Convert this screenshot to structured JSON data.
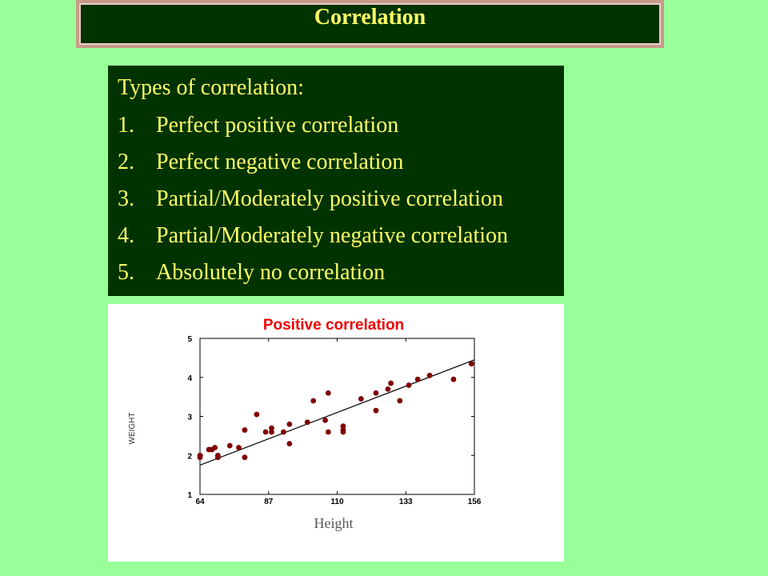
{
  "header": {
    "title": "Correlation"
  },
  "types": {
    "heading": "Types of correlation:",
    "items": [
      {
        "num": "1.",
        "label": "Perfect positive correlation"
      },
      {
        "num": "2.",
        "label": "Perfect negative correlation"
      },
      {
        "num": "3.",
        "label": "Partial/Moderately positive correlation"
      },
      {
        "num": "4.",
        "label": "Partial/Moderately negative correlation"
      },
      {
        "num": "5.",
        "label": "Absolutely no correlation"
      }
    ]
  },
  "chart_data": {
    "type": "scatter",
    "title": "Positive correlation",
    "xlabel": "Height",
    "ylabel": "WEIGHT",
    "xlim": [
      64,
      156
    ],
    "ylim": [
      1,
      5
    ],
    "x_ticks": [
      "64",
      "87",
      "110",
      "133",
      "156"
    ],
    "y_ticks": [
      "1",
      "2",
      "3",
      "4",
      "5"
    ],
    "grid": false,
    "colors": {
      "points": "#800000",
      "title": "#ee0000",
      "line": "#000000"
    },
    "trend_line": {
      "x": [
        64,
        156
      ],
      "y": [
        1.75,
        4.45
      ]
    },
    "points": [
      {
        "x": 64,
        "y": 1.95
      },
      {
        "x": 64,
        "y": 2.0
      },
      {
        "x": 67,
        "y": 2.15
      },
      {
        "x": 68,
        "y": 2.15
      },
      {
        "x": 69,
        "y": 2.2
      },
      {
        "x": 70,
        "y": 2.0
      },
      {
        "x": 70,
        "y": 1.95
      },
      {
        "x": 74,
        "y": 2.25
      },
      {
        "x": 77,
        "y": 2.2
      },
      {
        "x": 79,
        "y": 2.65
      },
      {
        "x": 79,
        "y": 1.95
      },
      {
        "x": 83,
        "y": 3.05
      },
      {
        "x": 86,
        "y": 2.6
      },
      {
        "x": 88,
        "y": 2.7
      },
      {
        "x": 88,
        "y": 2.6
      },
      {
        "x": 92,
        "y": 2.6
      },
      {
        "x": 94,
        "y": 2.8
      },
      {
        "x": 94,
        "y": 2.3
      },
      {
        "x": 100,
        "y": 2.85
      },
      {
        "x": 102,
        "y": 3.4
      },
      {
        "x": 106,
        "y": 2.9
      },
      {
        "x": 107,
        "y": 3.6
      },
      {
        "x": 107,
        "y": 2.6
      },
      {
        "x": 112,
        "y": 2.75
      },
      {
        "x": 112,
        "y": 2.65
      },
      {
        "x": 112,
        "y": 2.6
      },
      {
        "x": 118,
        "y": 3.45
      },
      {
        "x": 123,
        "y": 3.6
      },
      {
        "x": 123,
        "y": 3.15
      },
      {
        "x": 127,
        "y": 3.7
      },
      {
        "x": 128,
        "y": 3.85
      },
      {
        "x": 131,
        "y": 3.4
      },
      {
        "x": 134,
        "y": 3.8
      },
      {
        "x": 137,
        "y": 3.95
      },
      {
        "x": 141,
        "y": 4.05
      },
      {
        "x": 149,
        "y": 3.95
      },
      {
        "x": 155,
        "y": 4.35
      }
    ]
  }
}
